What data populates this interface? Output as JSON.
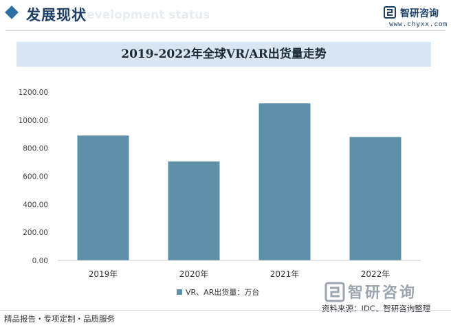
{
  "header": {
    "title": "发展现状",
    "subtitle": "Development status",
    "brand_name": "智研咨询",
    "brand_url": "www.chyxx.com"
  },
  "footer": {
    "left_text": "精品报告・专项定制・品质服务",
    "source_text": "资料来源：IDC、智研咨询整理",
    "logo_text": "智研咨询"
  },
  "colors": {
    "accent": "#2b6fa3",
    "bar": "#5d90a8",
    "title_band": "#d9e5f1"
  },
  "chart_data": {
    "type": "bar",
    "title": "2019-2022年全球VR/AR出货量走势",
    "categories": [
      "2019年",
      "2020年",
      "2021年",
      "2022年"
    ],
    "series": [
      {
        "name": "VR、AR出货量：万台",
        "values": [
          890,
          705,
          1120,
          880
        ]
      }
    ],
    "ylim": [
      0,
      1200
    ],
    "yticks": [
      "0.00",
      "200.00",
      "400.00",
      "600.00",
      "800.00",
      "1000.00",
      "1200.00"
    ],
    "grid": false,
    "legend_position": "bottom-center"
  }
}
